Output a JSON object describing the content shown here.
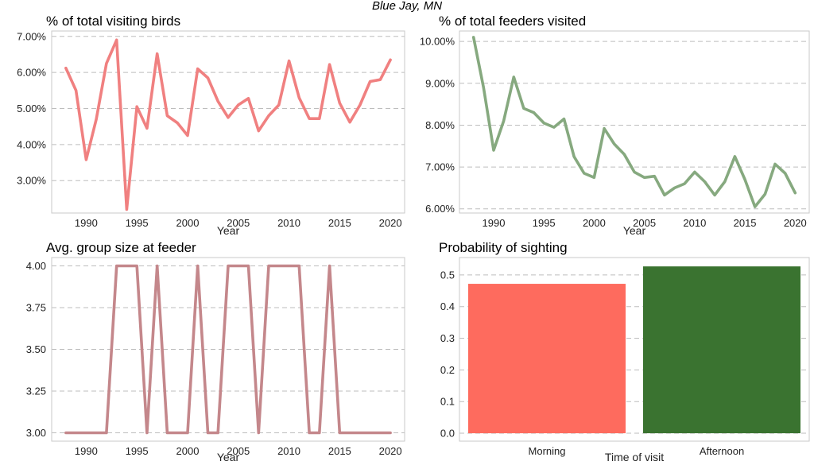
{
  "suptitle": "Blue Jay, MN",
  "chart_data": [
    {
      "type": "line",
      "title": "% of total visiting birds",
      "xlabel": "Year",
      "ylabel": "",
      "color": "#f08080",
      "x": [
        1988,
        1989,
        1990,
        1991,
        1992,
        1993,
        1994,
        1995,
        1996,
        1997,
        1998,
        1999,
        2000,
        2001,
        2002,
        2003,
        2004,
        2005,
        2006,
        2007,
        2008,
        2009,
        2010,
        2011,
        2012,
        2013,
        2014,
        2015,
        2016,
        2017,
        2018,
        2019,
        2020
      ],
      "y": [
        6.12,
        5.5,
        3.58,
        4.7,
        6.25,
        6.9,
        2.2,
        5.05,
        4.45,
        6.52,
        4.8,
        4.6,
        4.25,
        6.1,
        5.85,
        5.2,
        4.75,
        5.1,
        5.28,
        4.38,
        4.8,
        5.1,
        6.32,
        5.3,
        4.72,
        4.72,
        6.22,
        5.15,
        4.62,
        5.1,
        5.75,
        5.8,
        6.35
      ],
      "xticks": [
        "1990",
        "1995",
        "2000",
        "2005",
        "2010",
        "2015",
        "2020"
      ],
      "yticks": [
        "3.00%",
        "4.00%",
        "5.00%",
        "6.00%",
        "7.00%"
      ],
      "ylim": [
        2.1,
        7.15
      ],
      "xlim": [
        1986.6,
        2021.4
      ],
      "grid": true
    },
    {
      "type": "line",
      "title": "% of total feeders visited",
      "xlabel": "Year",
      "ylabel": "",
      "color": "#86a97f",
      "x": [
        1988,
        1989,
        1990,
        1991,
        1992,
        1993,
        1994,
        1995,
        1996,
        1997,
        1998,
        1999,
        2000,
        2001,
        2002,
        2003,
        2004,
        2005,
        2006,
        2007,
        2008,
        2009,
        2010,
        2011,
        2012,
        2013,
        2014,
        2015,
        2016,
        2017,
        2018,
        2019,
        2020
      ],
      "y": [
        10.1,
        8.9,
        7.4,
        8.1,
        9.15,
        8.4,
        8.3,
        8.05,
        7.95,
        8.15,
        7.25,
        6.85,
        6.75,
        7.92,
        7.55,
        7.3,
        6.88,
        6.75,
        6.78,
        6.33,
        6.5,
        6.6,
        6.88,
        6.65,
        6.33,
        6.65,
        7.25,
        6.7,
        6.05,
        6.35,
        7.07,
        6.85,
        6.38
      ],
      "xticks": [
        "1990",
        "1995",
        "2000",
        "2005",
        "2010",
        "2015",
        "2020"
      ],
      "yticks": [
        "6.00%",
        "7.00%",
        "8.00%",
        "9.00%",
        "10.00%"
      ],
      "ylim": [
        5.9,
        10.25
      ],
      "xlim": [
        1986.6,
        2021.4
      ],
      "grid": true
    },
    {
      "type": "line",
      "title": "Avg. group size at feeder",
      "xlabel": "Year",
      "ylabel": "",
      "color": "#c4878b",
      "x": [
        1988,
        1989,
        1990,
        1991,
        1992,
        1993,
        1994,
        1995,
        1996,
        1997,
        1998,
        1999,
        2000,
        2001,
        2002,
        2003,
        2004,
        2005,
        2006,
        2007,
        2008,
        2009,
        2010,
        2011,
        2012,
        2013,
        2014,
        2015,
        2016,
        2017,
        2018,
        2019,
        2020
      ],
      "y": [
        3,
        3,
        3,
        3,
        3,
        4,
        4,
        4,
        3,
        4,
        3,
        3,
        3,
        4,
        3,
        3,
        4,
        4,
        4,
        3,
        4,
        4,
        4,
        4,
        3,
        3,
        4,
        3,
        3,
        3,
        3,
        3,
        3
      ],
      "xticks": [
        "1990",
        "1995",
        "2000",
        "2005",
        "2010",
        "2015",
        "2020"
      ],
      "yticks": [
        "3.00",
        "3.25",
        "3.50",
        "3.75",
        "4.00"
      ],
      "ylim": [
        2.95,
        4.05
      ],
      "xlim": [
        1986.6,
        2021.4
      ],
      "grid": true
    },
    {
      "type": "bar",
      "title": "Probability of sighting",
      "xlabel": "Time of visit",
      "ylabel": "",
      "categories": [
        "Morning",
        "Afternoon"
      ],
      "values": [
        0.472,
        0.527
      ],
      "colors": [
        "#fe6b5e",
        "#3a7330"
      ],
      "yticks": [
        "0.0",
        "0.1",
        "0.2",
        "0.3",
        "0.4",
        "0.5"
      ],
      "ylim": [
        -0.025,
        0.555
      ],
      "grid": true
    }
  ]
}
